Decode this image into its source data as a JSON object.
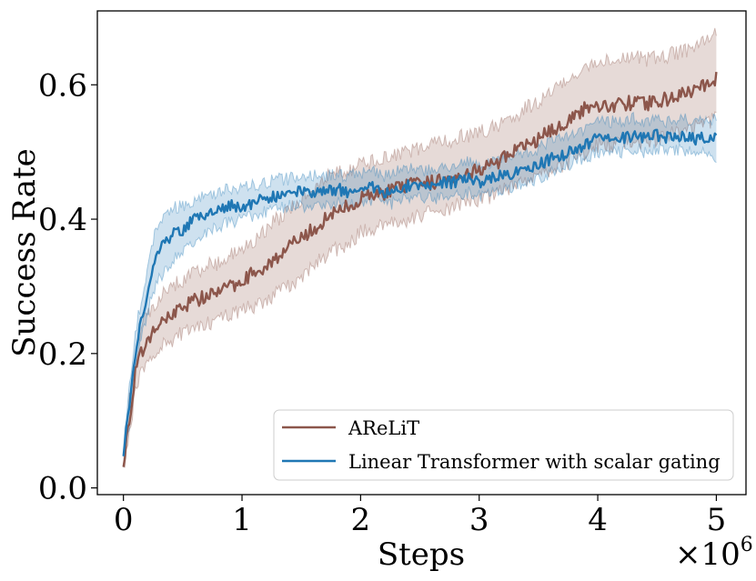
{
  "chart_data": {
    "type": "line",
    "title": "",
    "xlabel": "Steps",
    "ylabel": "Success Rate",
    "x_multiplier_label": "×10",
    "x_multiplier_exp": "6",
    "xlim": [
      -0.22,
      5.25
    ],
    "ylim": [
      -0.01,
      0.71
    ],
    "xticks": [
      0,
      1,
      2,
      3,
      4,
      5
    ],
    "xtick_labels": [
      "0",
      "1",
      "2",
      "3",
      "4",
      "5"
    ],
    "yticks": [
      0.0,
      0.2,
      0.4,
      0.6
    ],
    "ytick_labels": [
      "0.0",
      "0.2",
      "0.4",
      "0.6"
    ],
    "grid": false,
    "legend_position": "lower-right",
    "series": [
      {
        "name": "AReLiT",
        "color": "#8c564b",
        "x": [
          0,
          0.05,
          0.1,
          0.15,
          0.2,
          0.3,
          0.4,
          0.5,
          0.6,
          0.7,
          0.8,
          0.9,
          1.0,
          1.1,
          1.2,
          1.3,
          1.4,
          1.5,
          1.6,
          1.7,
          1.8,
          1.9,
          2.0,
          2.1,
          2.2,
          2.3,
          2.4,
          2.5,
          2.6,
          2.7,
          2.8,
          2.9,
          3.0,
          3.1,
          3.2,
          3.3,
          3.4,
          3.5,
          3.6,
          3.7,
          3.8,
          3.9,
          4.0,
          4.1,
          4.2,
          4.3,
          4.4,
          4.5,
          4.6,
          4.7,
          4.8,
          4.9,
          5.0
        ],
        "values": [
          0.04,
          0.1,
          0.17,
          0.2,
          0.22,
          0.24,
          0.26,
          0.27,
          0.28,
          0.285,
          0.29,
          0.3,
          0.31,
          0.32,
          0.33,
          0.345,
          0.36,
          0.37,
          0.385,
          0.4,
          0.41,
          0.42,
          0.43,
          0.435,
          0.44,
          0.445,
          0.45,
          0.452,
          0.455,
          0.46,
          0.465,
          0.47,
          0.475,
          0.48,
          0.49,
          0.5,
          0.51,
          0.52,
          0.53,
          0.54,
          0.555,
          0.565,
          0.57,
          0.57,
          0.572,
          0.573,
          0.572,
          0.575,
          0.58,
          0.585,
          0.59,
          0.6,
          0.61
        ],
        "lower": [
          0.03,
          0.08,
          0.14,
          0.17,
          0.19,
          0.21,
          0.22,
          0.23,
          0.24,
          0.245,
          0.25,
          0.26,
          0.265,
          0.27,
          0.28,
          0.29,
          0.3,
          0.315,
          0.33,
          0.345,
          0.355,
          0.365,
          0.38,
          0.385,
          0.39,
          0.395,
          0.4,
          0.405,
          0.41,
          0.415,
          0.42,
          0.425,
          0.43,
          0.435,
          0.445,
          0.45,
          0.46,
          0.47,
          0.475,
          0.48,
          0.49,
          0.5,
          0.51,
          0.51,
          0.512,
          0.515,
          0.515,
          0.52,
          0.525,
          0.53,
          0.535,
          0.54,
          0.55
        ],
        "upper": [
          0.05,
          0.13,
          0.2,
          0.24,
          0.26,
          0.28,
          0.3,
          0.31,
          0.32,
          0.33,
          0.335,
          0.345,
          0.355,
          0.37,
          0.385,
          0.4,
          0.415,
          0.43,
          0.445,
          0.46,
          0.47,
          0.475,
          0.48,
          0.485,
          0.49,
          0.495,
          0.5,
          0.505,
          0.51,
          0.515,
          0.52,
          0.525,
          0.53,
          0.535,
          0.545,
          0.555,
          0.565,
          0.575,
          0.59,
          0.6,
          0.615,
          0.625,
          0.635,
          0.635,
          0.635,
          0.64,
          0.638,
          0.64,
          0.645,
          0.65,
          0.655,
          0.665,
          0.675
        ]
      },
      {
        "name": "Linear Transformer with scalar gating",
        "color": "#1f77b4",
        "x": [
          0,
          0.05,
          0.1,
          0.15,
          0.2,
          0.25,
          0.3,
          0.35,
          0.4,
          0.5,
          0.6,
          0.7,
          0.8,
          0.9,
          1.0,
          1.1,
          1.2,
          1.3,
          1.4,
          1.5,
          1.6,
          1.7,
          1.8,
          1.9,
          2.0,
          2.1,
          2.2,
          2.3,
          2.4,
          2.5,
          2.6,
          2.7,
          2.8,
          2.9,
          3.0,
          3.1,
          3.2,
          3.3,
          3.4,
          3.5,
          3.6,
          3.7,
          3.8,
          3.9,
          4.0,
          4.1,
          4.2,
          4.3,
          4.4,
          4.5,
          4.6,
          4.7,
          4.8,
          4.9,
          5.0
        ],
        "values": [
          0.05,
          0.12,
          0.2,
          0.25,
          0.29,
          0.33,
          0.355,
          0.365,
          0.375,
          0.385,
          0.4,
          0.405,
          0.415,
          0.42,
          0.42,
          0.425,
          0.43,
          0.435,
          0.44,
          0.44,
          0.44,
          0.44,
          0.445,
          0.44,
          0.445,
          0.45,
          0.44,
          0.445,
          0.45,
          0.448,
          0.45,
          0.455,
          0.455,
          0.46,
          0.455,
          0.46,
          0.465,
          0.47,
          0.475,
          0.48,
          0.49,
          0.495,
          0.505,
          0.51,
          0.52,
          0.52,
          0.52,
          0.525,
          0.52,
          0.525,
          0.52,
          0.525,
          0.52,
          0.52,
          0.52
        ],
        "lower": [
          0.035,
          0.09,
          0.17,
          0.22,
          0.26,
          0.29,
          0.31,
          0.325,
          0.335,
          0.355,
          0.37,
          0.38,
          0.39,
          0.395,
          0.4,
          0.405,
          0.41,
          0.415,
          0.42,
          0.42,
          0.42,
          0.42,
          0.425,
          0.42,
          0.425,
          0.43,
          0.42,
          0.425,
          0.43,
          0.43,
          0.43,
          0.435,
          0.435,
          0.44,
          0.435,
          0.44,
          0.445,
          0.45,
          0.455,
          0.46,
          0.47,
          0.475,
          0.485,
          0.49,
          0.5,
          0.5,
          0.5,
          0.505,
          0.5,
          0.505,
          0.5,
          0.505,
          0.5,
          0.5,
          0.49
        ],
        "upper": [
          0.065,
          0.15,
          0.23,
          0.28,
          0.32,
          0.37,
          0.395,
          0.405,
          0.415,
          0.42,
          0.43,
          0.435,
          0.44,
          0.445,
          0.445,
          0.45,
          0.455,
          0.46,
          0.46,
          0.465,
          0.465,
          0.465,
          0.465,
          0.465,
          0.47,
          0.47,
          0.465,
          0.47,
          0.475,
          0.47,
          0.475,
          0.48,
          0.48,
          0.485,
          0.48,
          0.485,
          0.49,
          0.495,
          0.5,
          0.505,
          0.515,
          0.52,
          0.53,
          0.535,
          0.545,
          0.545,
          0.545,
          0.55,
          0.545,
          0.55,
          0.545,
          0.55,
          0.545,
          0.545,
          0.55
        ]
      }
    ]
  }
}
